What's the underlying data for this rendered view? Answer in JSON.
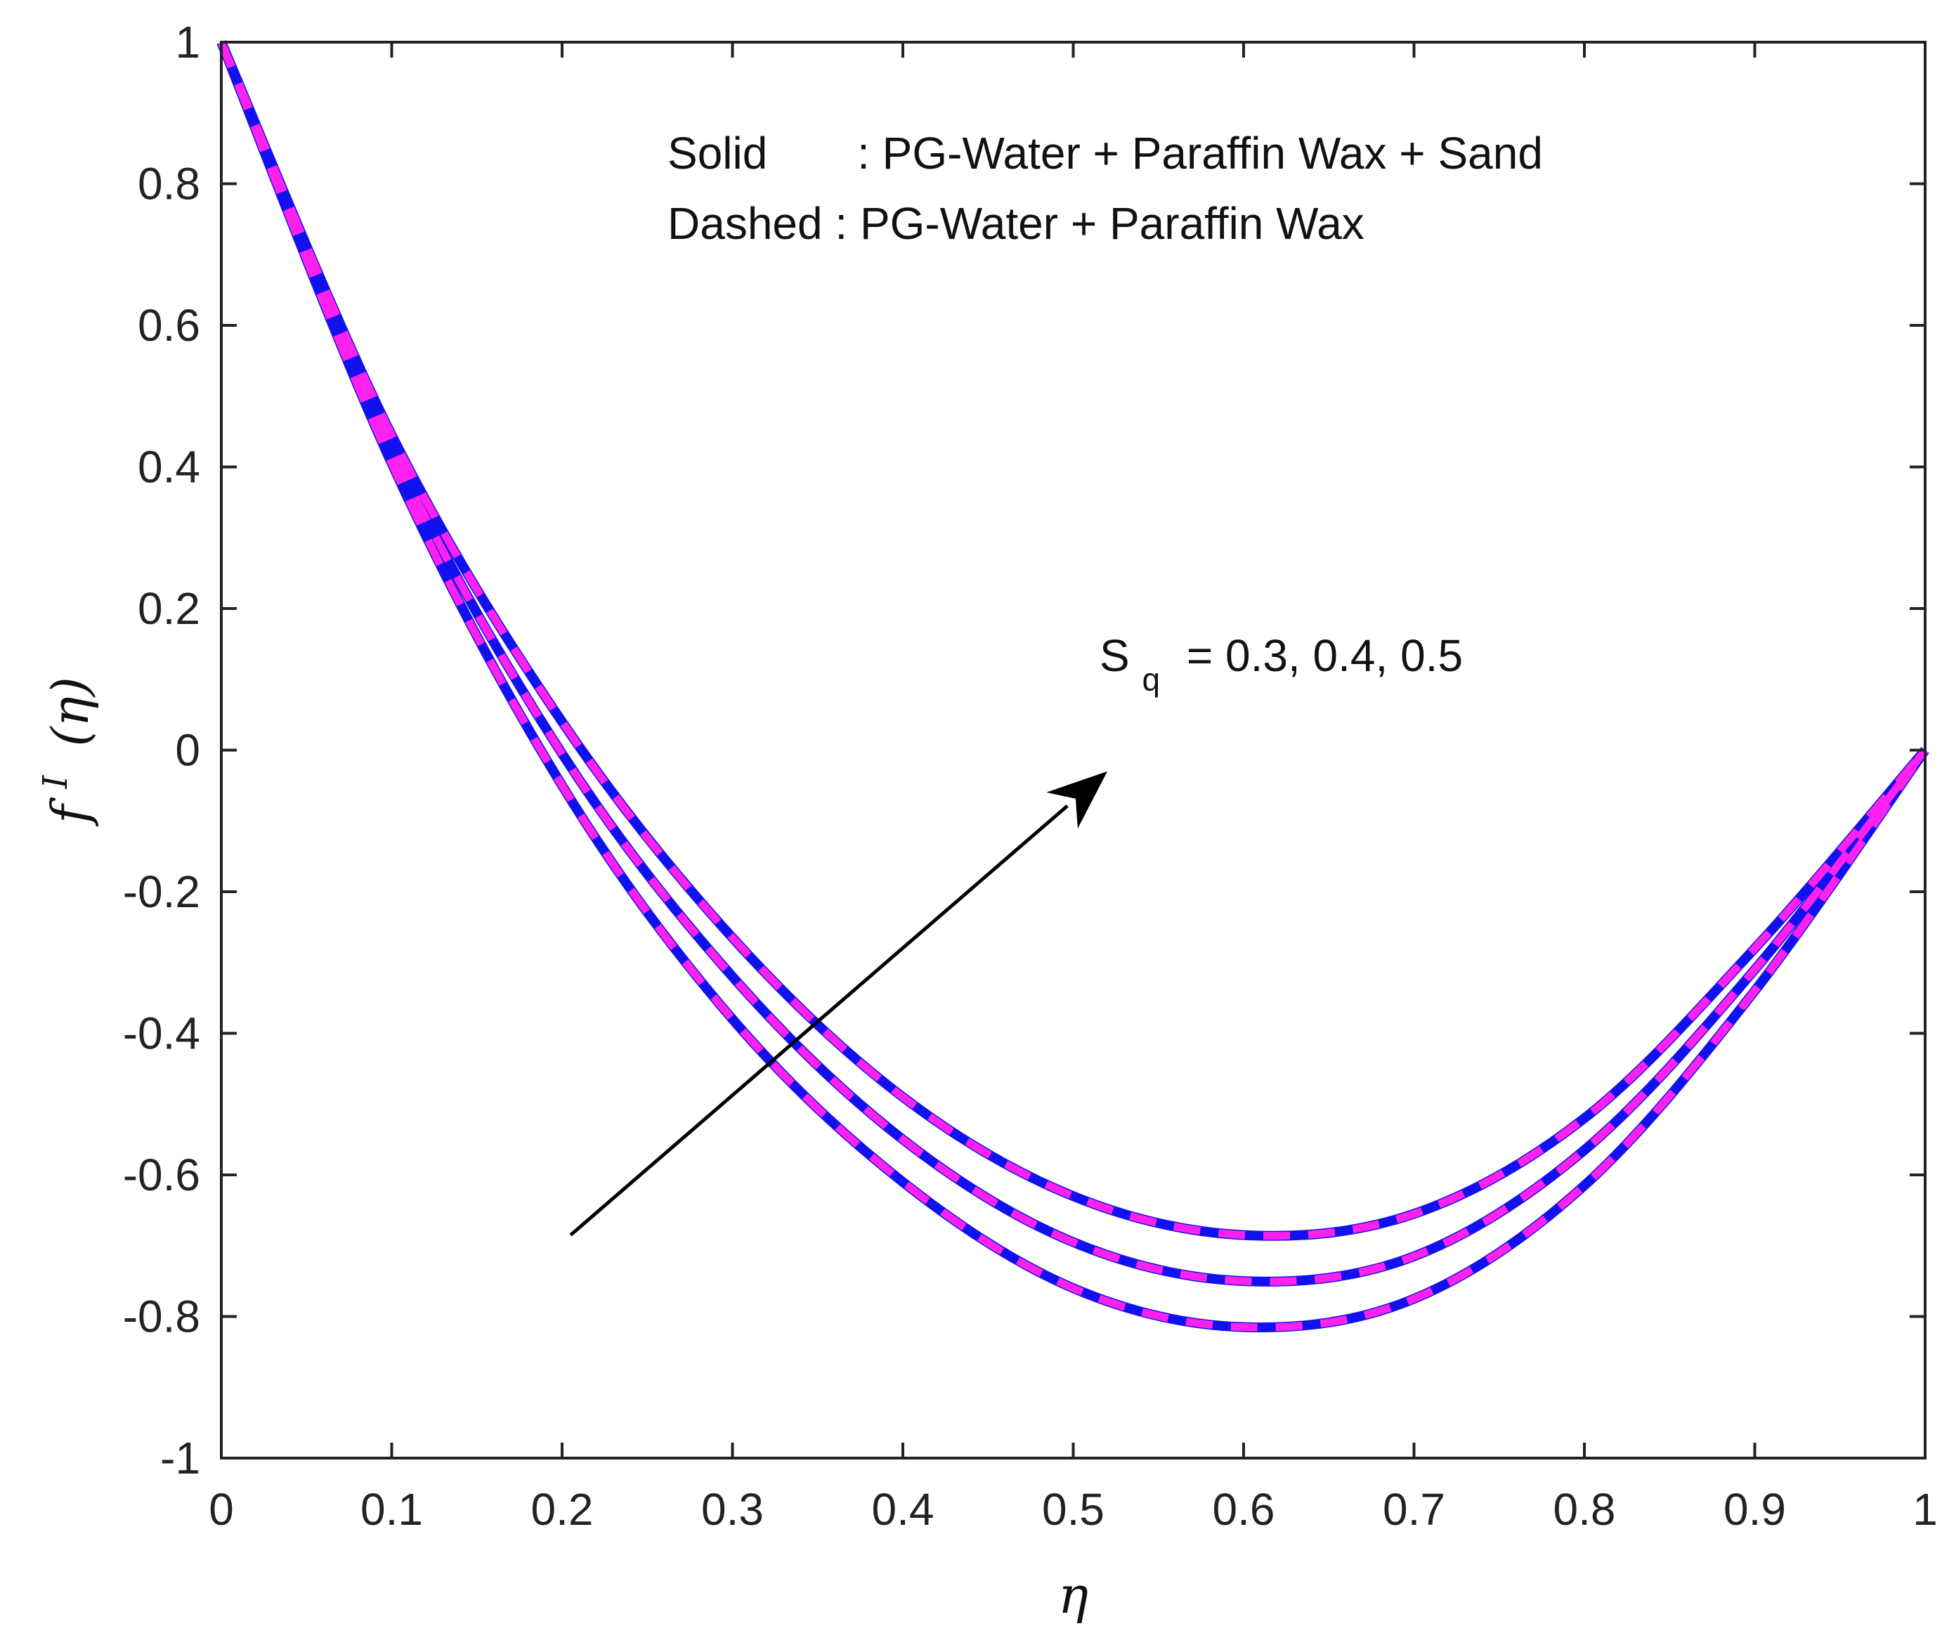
{
  "chart_data": {
    "type": "line",
    "title": "",
    "xlabel": "η",
    "ylabel": {
      "base": "f",
      "superscript": "I",
      "argument": "(η)"
    },
    "xlim": [
      0,
      1
    ],
    "ylim": [
      -1,
      1
    ],
    "xticks": [
      0,
      0.1,
      0.2,
      0.3,
      0.4,
      0.5,
      0.6,
      0.7,
      0.8,
      0.9,
      1
    ],
    "xtick_labels": [
      "0",
      "0.1",
      "0.2",
      "0.3",
      "0.4",
      "0.5",
      "0.6",
      "0.7",
      "0.8",
      "0.9",
      "1"
    ],
    "yticks": [
      -1,
      -0.8,
      -0.6,
      -0.4,
      -0.2,
      0,
      0.2,
      0.4,
      0.6,
      0.8,
      1
    ],
    "ytick_labels": [
      "-1",
      "-0.8",
      "-0.6",
      "-0.4",
      "-0.2",
      "0",
      "0.2",
      "0.4",
      "0.6",
      "0.8",
      "1"
    ],
    "grid": false,
    "legend_lines": [
      {
        "style": "Solid",
        "separator": ":",
        "description": "PG-Water + Paraffin Wax + Sand"
      },
      {
        "style": "Dashed",
        "separator": ":",
        "description": "PG-Water + Paraffin Wax"
      }
    ],
    "legend_position": "top-center",
    "annotation": {
      "symbol": "S",
      "subscript": "q",
      "text": "= 0.3, 0.4, 0.5",
      "arrow_from": [
        0.205,
        -0.685
      ],
      "arrow_to": [
        0.52,
        -0.03
      ]
    },
    "series": [
      {
        "name": "Solid Sq=0.3",
        "style": "solid",
        "color": "#1111ee",
        "sq": 0.3,
        "x": [
          0,
          0.1,
          0.2,
          0.3,
          0.4,
          0.5,
          0.6,
          0.7,
          0.8,
          0.9,
          1
        ],
        "y": [
          1,
          0.405,
          -0.05,
          -0.38,
          -0.61,
          -0.76,
          -0.815,
          -0.775,
          -0.615,
          -0.34,
          0
        ]
      },
      {
        "name": "Solid Sq=0.4",
        "style": "solid",
        "color": "#1111ee",
        "sq": 0.4,
        "x": [
          0,
          0.1,
          0.2,
          0.3,
          0.4,
          0.5,
          0.6,
          0.7,
          0.8,
          0.9,
          1
        ],
        "y": [
          1,
          0.425,
          -0.005,
          -0.32,
          -0.55,
          -0.695,
          -0.75,
          -0.715,
          -0.565,
          -0.31,
          0
        ]
      },
      {
        "name": "Solid Sq=0.5",
        "style": "solid",
        "color": "#1111ee",
        "sq": 0.5,
        "x": [
          0,
          0.1,
          0.2,
          0.3,
          0.4,
          0.5,
          0.6,
          0.7,
          0.8,
          0.9,
          1
        ],
        "y": [
          1,
          0.445,
          0.04,
          -0.265,
          -0.49,
          -0.63,
          -0.685,
          -0.655,
          -0.52,
          -0.28,
          0
        ]
      },
      {
        "name": "Dashed Sq=0.3",
        "style": "dashed",
        "color": "#ff22ee",
        "sq": 0.3,
        "x": [
          0,
          0.1,
          0.2,
          0.3,
          0.4,
          0.5,
          0.6,
          0.7,
          0.8,
          0.9,
          1
        ],
        "y": [
          1,
          0.405,
          -0.05,
          -0.38,
          -0.61,
          -0.76,
          -0.815,
          -0.775,
          -0.615,
          -0.34,
          0
        ]
      },
      {
        "name": "Dashed Sq=0.4",
        "style": "dashed",
        "color": "#ff22ee",
        "sq": 0.4,
        "x": [
          0,
          0.1,
          0.2,
          0.3,
          0.4,
          0.5,
          0.6,
          0.7,
          0.8,
          0.9,
          1
        ],
        "y": [
          1,
          0.425,
          -0.005,
          -0.32,
          -0.55,
          -0.695,
          -0.75,
          -0.715,
          -0.565,
          -0.31,
          0
        ]
      },
      {
        "name": "Dashed Sq=0.5",
        "style": "dashed",
        "color": "#ff22ee",
        "sq": 0.5,
        "x": [
          0,
          0.1,
          0.2,
          0.3,
          0.4,
          0.5,
          0.6,
          0.7,
          0.8,
          0.9,
          1
        ],
        "y": [
          1,
          0.445,
          0.04,
          -0.265,
          -0.49,
          -0.63,
          -0.685,
          -0.655,
          -0.52,
          -0.28,
          0
        ]
      }
    ]
  }
}
